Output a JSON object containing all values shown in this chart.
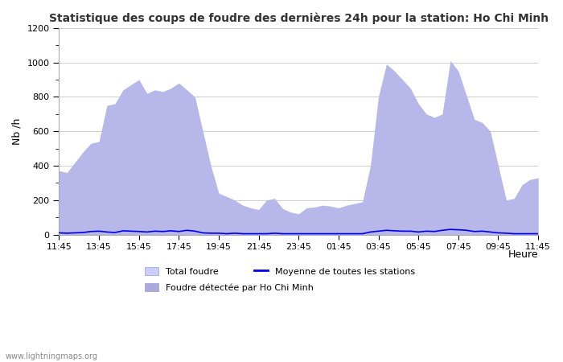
{
  "title": "Statistique des coups de foudre des dernières 24h pour la station: Ho Chi Minh",
  "xlabel": "Heure",
  "ylabel": "Nb /h",
  "xlim_labels": [
    "11:45",
    "13:45",
    "15:45",
    "17:45",
    "19:45",
    "21:45",
    "23:45",
    "01:45",
    "03:45",
    "05:45",
    "07:45",
    "09:45",
    "11:45"
  ],
  "ylim": [
    0,
    1200
  ],
  "yticks": [
    0,
    200,
    400,
    600,
    800,
    1000,
    1200
  ],
  "background_color": "#ffffff",
  "fill_total_color": "#ccccff",
  "fill_station_color": "#aaaadd",
  "line_color": "#0000ee",
  "watermark": "www.lightningmaps.org",
  "legend": {
    "total_foudre": "Total foudre",
    "moyenne": "Moyenne de toutes les stations",
    "station": "Foudre détectée par Ho Chi Minh"
  },
  "total_foudre": [
    370,
    360,
    420,
    480,
    530,
    540,
    750,
    760,
    840,
    870,
    900,
    820,
    840,
    830,
    850,
    880,
    840,
    800,
    600,
    400,
    240,
    220,
    200,
    170,
    155,
    145,
    200,
    210,
    150,
    130,
    120,
    155,
    160,
    170,
    165,
    155,
    170,
    180,
    190,
    400,
    800,
    990,
    950,
    900,
    850,
    760,
    700,
    680,
    700,
    1010,
    950,
    810,
    670,
    650,
    600,
    400,
    200,
    210,
    290,
    320,
    330
  ],
  "station_foudre": [
    370,
    360,
    420,
    480,
    530,
    540,
    750,
    760,
    840,
    870,
    900,
    820,
    840,
    830,
    850,
    880,
    840,
    800,
    600,
    400,
    240,
    220,
    200,
    170,
    155,
    145,
    200,
    210,
    150,
    130,
    120,
    155,
    160,
    170,
    165,
    155,
    170,
    180,
    190,
    400,
    800,
    990,
    950,
    900,
    850,
    760,
    700,
    680,
    700,
    1010,
    950,
    810,
    670,
    650,
    600,
    400,
    200,
    210,
    290,
    320,
    330
  ],
  "moyenne_line": [
    10,
    8,
    10,
    12,
    18,
    20,
    15,
    12,
    22,
    20,
    18,
    15,
    20,
    18,
    22,
    18,
    25,
    20,
    10,
    8,
    8,
    5,
    8,
    5,
    5,
    5,
    5,
    8,
    5,
    5,
    5,
    5,
    5,
    5,
    5,
    5,
    5,
    5,
    5,
    15,
    20,
    25,
    22,
    20,
    20,
    15,
    20,
    18,
    25,
    30,
    28,
    25,
    18,
    20,
    15,
    10,
    8,
    5,
    5,
    5,
    5
  ]
}
